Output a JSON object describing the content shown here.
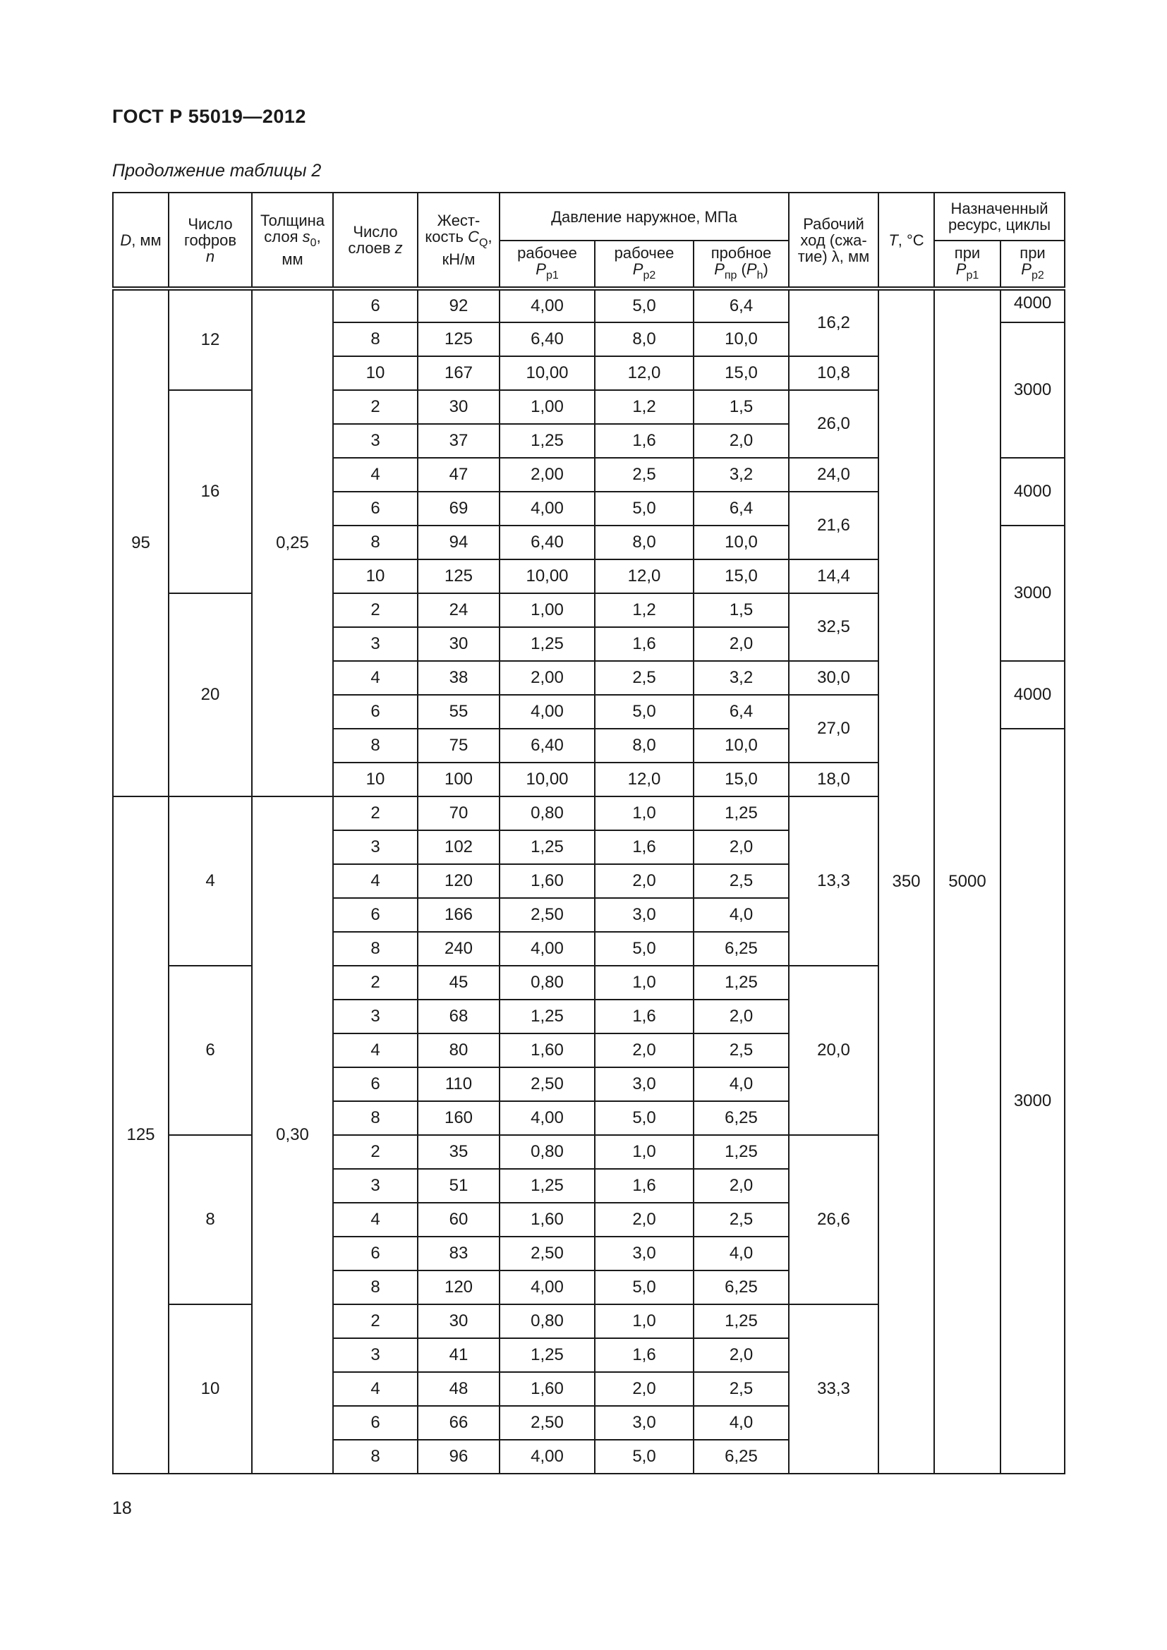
{
  "doc_title": "ГОСТ Р 55019—2012",
  "caption": "Продолжение таблицы 2",
  "page_number": "18",
  "headers": {
    "D": "D",
    "D_unit": ", мм",
    "n_label": "Число гофров",
    "n_sym": "n",
    "s_label": "Толщина слоя ",
    "s_sym": "s",
    "s_sub": "0",
    "s_unit": ", мм",
    "z_label": "Число слоев ",
    "z_sym": "z",
    "c_label": "Жест-кость ",
    "c_sym": "C",
    "c_sub": "Q",
    "c_unit": ", кН/м",
    "pressure": "Давление наружное, МПа",
    "p1_label": "рабочее",
    "p1_sym": "P",
    "p1_sub": "р1",
    "p2_label": "рабочее",
    "p2_sym": "P",
    "p2_sub": "р2",
    "ppr_label": "пробное",
    "ppr_sym": "P",
    "ppr_sub": "пр",
    "ph_sym": "P",
    "ph_sub": "h",
    "stroke": "Рабочий ход (сжа-тие) λ, мм",
    "T_sym": "T",
    "T_unit": ", °С",
    "resource": "Назначенный ресурс, циклы",
    "r1_label": "при",
    "r1_sym": "P",
    "r1_sub": "р1",
    "r2_label": "при",
    "r2_sym": "P",
    "r2_sub": "р2"
  },
  "groups": {
    "D": [
      {
        "value": "95",
        "rows": 15
      },
      {
        "value": "125",
        "rows": 20
      }
    ],
    "n": [
      {
        "value": "12",
        "rows": 3
      },
      {
        "value": "16",
        "rows": 6
      },
      {
        "value": "20",
        "rows": 6
      },
      {
        "value": "4",
        "rows": 5
      },
      {
        "value": "6",
        "rows": 5
      },
      {
        "value": "8",
        "rows": 5
      },
      {
        "value": "10",
        "rows": 5
      }
    ],
    "s0": [
      {
        "value": "0,25",
        "rows": 15
      },
      {
        "value": "0,30",
        "rows": 20
      }
    ],
    "stroke": [
      {
        "value": "16,2",
        "rows": 2
      },
      {
        "value": "10,8",
        "rows": 1
      },
      {
        "value": "26,0",
        "rows": 2
      },
      {
        "value": "24,0",
        "rows": 1
      },
      {
        "value": "21,6",
        "rows": 2
      },
      {
        "value": "14,4",
        "rows": 1
      },
      {
        "value": "32,5",
        "rows": 2
      },
      {
        "value": "30,0",
        "rows": 1
      },
      {
        "value": "27,0",
        "rows": 2
      },
      {
        "value": "18,0",
        "rows": 1
      },
      {
        "value": "13,3",
        "rows": 5
      },
      {
        "value": "20,0",
        "rows": 5
      },
      {
        "value": "26,6",
        "rows": 5
      },
      {
        "value": "33,3",
        "rows": 5
      }
    ],
    "T": [
      {
        "value": "350",
        "rows": 35
      }
    ],
    "r1": [
      {
        "value": "5000",
        "rows": 35
      }
    ],
    "r2": [
      {
        "value": "4000",
        "rows": 1
      },
      {
        "value": "3000",
        "rows": 4
      },
      {
        "value": "4000",
        "rows": 2
      },
      {
        "value": "3000",
        "rows": 4
      },
      {
        "value": "4000",
        "rows": 2
      },
      {
        "value": "3000",
        "rows": 22
      }
    ]
  },
  "rows": [
    [
      "6",
      "92",
      "4,00",
      "5,0",
      "6,4"
    ],
    [
      "8",
      "125",
      "6,40",
      "8,0",
      "10,0"
    ],
    [
      "10",
      "167",
      "10,00",
      "12,0",
      "15,0"
    ],
    [
      "2",
      "30",
      "1,00",
      "1,2",
      "1,5"
    ],
    [
      "3",
      "37",
      "1,25",
      "1,6",
      "2,0"
    ],
    [
      "4",
      "47",
      "2,00",
      "2,5",
      "3,2"
    ],
    [
      "6",
      "69",
      "4,00",
      "5,0",
      "6,4"
    ],
    [
      "8",
      "94",
      "6,40",
      "8,0",
      "10,0"
    ],
    [
      "10",
      "125",
      "10,00",
      "12,0",
      "15,0"
    ],
    [
      "2",
      "24",
      "1,00",
      "1,2",
      "1,5"
    ],
    [
      "3",
      "30",
      "1,25",
      "1,6",
      "2,0"
    ],
    [
      "4",
      "38",
      "2,00",
      "2,5",
      "3,2"
    ],
    [
      "6",
      "55",
      "4,00",
      "5,0",
      "6,4"
    ],
    [
      "8",
      "75",
      "6,40",
      "8,0",
      "10,0"
    ],
    [
      "10",
      "100",
      "10,00",
      "12,0",
      "15,0"
    ],
    [
      "2",
      "70",
      "0,80",
      "1,0",
      "1,25"
    ],
    [
      "3",
      "102",
      "1,25",
      "1,6",
      "2,0"
    ],
    [
      "4",
      "120",
      "1,60",
      "2,0",
      "2,5"
    ],
    [
      "6",
      "166",
      "2,50",
      "3,0",
      "4,0"
    ],
    [
      "8",
      "240",
      "4,00",
      "5,0",
      "6,25"
    ],
    [
      "2",
      "45",
      "0,80",
      "1,0",
      "1,25"
    ],
    [
      "3",
      "68",
      "1,25",
      "1,6",
      "2,0"
    ],
    [
      "4",
      "80",
      "1,60",
      "2,0",
      "2,5"
    ],
    [
      "6",
      "110",
      "2,50",
      "3,0",
      "4,0"
    ],
    [
      "8",
      "160",
      "4,00",
      "5,0",
      "6,25"
    ],
    [
      "2",
      "35",
      "0,80",
      "1,0",
      "1,25"
    ],
    [
      "3",
      "51",
      "1,25",
      "1,6",
      "2,0"
    ],
    [
      "4",
      "60",
      "1,60",
      "2,0",
      "2,5"
    ],
    [
      "6",
      "83",
      "2,50",
      "3,0",
      "4,0"
    ],
    [
      "8",
      "120",
      "4,00",
      "5,0",
      "6,25"
    ],
    [
      "2",
      "30",
      "0,80",
      "1,0",
      "1,25"
    ],
    [
      "3",
      "41",
      "1,25",
      "1,6",
      "2,0"
    ],
    [
      "4",
      "48",
      "1,60",
      "2,0",
      "2,5"
    ],
    [
      "6",
      "66",
      "2,50",
      "3,0",
      "4,0"
    ],
    [
      "8",
      "96",
      "4,00",
      "5,0",
      "6,25"
    ]
  ]
}
